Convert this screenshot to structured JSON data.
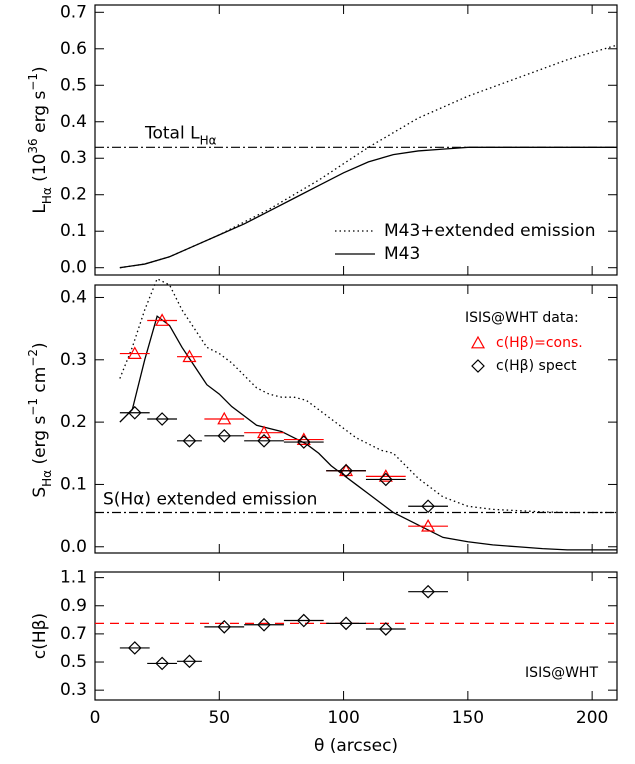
{
  "chart_data": [
    {
      "type": "line",
      "ylabel": [
        "L",
        {
          "text": "Hα",
          "shift": "sub"
        },
        " (10",
        {
          "text": "36",
          "shift": "super"
        },
        " erg s",
        {
          "text": "−1",
          "shift": "super"
        },
        ")"
      ],
      "xlim": [
        0,
        210
      ],
      "xticks": [
        0,
        50,
        100,
        150,
        200
      ],
      "ylim": [
        -0.02,
        0.72
      ],
      "yticks": [
        {
          "value": 0,
          "label": "0.0"
        },
        0.1,
        0.2,
        0.3,
        0.4,
        0.5,
        0.6,
        0.7
      ],
      "legend": "lower right",
      "hlines": [
        {
          "value": 0.33,
          "style": "dashdot",
          "color": "#000000",
          "label": [
            "Total L",
            {
              "text": "Hα",
              "shift": "sub"
            }
          ]
        }
      ],
      "series": [
        {
          "name": "M43+extended emission",
          "style": "dotted",
          "color": "#000000",
          "x": [
            10,
            20,
            30,
            40,
            50,
            60,
            70,
            80,
            90,
            100,
            110,
            120,
            130,
            140,
            150,
            160,
            170,
            180,
            190,
            200,
            210
          ],
          "values": [
            0,
            0.01,
            0.03,
            0.06,
            0.09,
            0.125,
            0.16,
            0.2,
            0.24,
            0.285,
            0.33,
            0.37,
            0.41,
            0.44,
            0.47,
            0.495,
            0.52,
            0.545,
            0.57,
            0.59,
            0.61
          ]
        },
        {
          "name": "M43",
          "style": "solid",
          "color": "#000000",
          "x": [
            10,
            20,
            30,
            40,
            50,
            60,
            70,
            80,
            90,
            100,
            110,
            120,
            130,
            140,
            150,
            160,
            170,
            180,
            190,
            200,
            210
          ],
          "values": [
            0,
            0.01,
            0.03,
            0.06,
            0.09,
            0.12,
            0.155,
            0.19,
            0.225,
            0.26,
            0.29,
            0.31,
            0.32,
            0.325,
            0.33,
            0.33,
            0.33,
            0.33,
            0.33,
            0.33,
            0.33
          ]
        }
      ]
    },
    {
      "type": "line",
      "ylabel": [
        "S",
        {
          "text": "Hα",
          "shift": "sub"
        },
        " (erg s",
        {
          "text": "−1",
          "shift": "super"
        },
        " cm",
        {
          "text": "−2",
          "shift": "super"
        },
        ")"
      ],
      "xlim": [
        0,
        210
      ],
      "xticks": [
        0,
        50,
        100,
        150,
        200
      ],
      "ylim": [
        -0.01,
        0.42
      ],
      "yticks": [
        {
          "value": 0,
          "label": "0.0"
        },
        0.1,
        0.2,
        0.3,
        0.4
      ],
      "legend": "upper right",
      "legend_title": "ISIS@WHT data:",
      "hlines": [
        {
          "value": 0.055,
          "style": "dashdot",
          "color": "#000000",
          "label": [
            "S(Hα) extended emission"
          ]
        }
      ],
      "series": [
        {
          "style": "dotted",
          "color": "#000000",
          "x": [
            10,
            15,
            20,
            25,
            30,
            35,
            40,
            45,
            50,
            55,
            60,
            65,
            70,
            75,
            80,
            85,
            90,
            95,
            100,
            105,
            110,
            115,
            120,
            125,
            130,
            135,
            140,
            150,
            160,
            170,
            180,
            190,
            200,
            210
          ],
          "values": [
            0.27,
            0.32,
            0.38,
            0.43,
            0.42,
            0.38,
            0.35,
            0.32,
            0.31,
            0.295,
            0.275,
            0.255,
            0.245,
            0.24,
            0.24,
            0.235,
            0.22,
            0.205,
            0.19,
            0.175,
            0.165,
            0.155,
            0.15,
            0.13,
            0.11,
            0.095,
            0.08,
            0.065,
            0.06,
            0.058,
            0.056,
            0.055,
            0.055,
            0.055
          ]
        },
        {
          "style": "solid",
          "color": "#000000",
          "x": [
            10,
            15,
            20,
            25,
            30,
            35,
            40,
            45,
            50,
            55,
            60,
            65,
            70,
            75,
            80,
            85,
            90,
            95,
            100,
            105,
            110,
            115,
            120,
            125,
            130,
            135,
            140,
            150,
            160,
            170,
            180,
            190,
            200,
            210
          ],
          "values": [
            0.2,
            0.22,
            0.3,
            0.37,
            0.355,
            0.32,
            0.29,
            0.26,
            0.245,
            0.225,
            0.21,
            0.195,
            0.19,
            0.185,
            0.175,
            0.165,
            0.15,
            0.13,
            0.115,
            0.1,
            0.085,
            0.07,
            0.055,
            0.045,
            0.035,
            0.025,
            0.015,
            0.008,
            0.003,
            0,
            -0.003,
            -0.005,
            -0.005,
            -0.005
          ]
        },
        {
          "name": "c(Hβ)=cons.",
          "marker": "triangle",
          "color": "#ff0000",
          "x": [
            16,
            27,
            38,
            52,
            68,
            84,
            101,
            117,
            134
          ],
          "xerr": [
            6,
            6,
            5,
            8,
            8,
            8,
            8,
            8,
            8
          ],
          "values": [
            0.31,
            0.363,
            0.305,
            0.205,
            0.183,
            0.172,
            0.122,
            0.113,
            0.033
          ]
        },
        {
          "name": "c(Hβ) spect",
          "marker": "diamond",
          "color": "#000000",
          "x": [
            16,
            27,
            38,
            52,
            68,
            84,
            101,
            117,
            134
          ],
          "xerr": [
            6,
            6,
            5,
            8,
            8,
            8,
            8,
            8,
            8
          ],
          "values": [
            0.215,
            0.205,
            0.17,
            0.178,
            0.17,
            0.168,
            0.122,
            0.108,
            0.065
          ]
        }
      ]
    },
    {
      "type": "scatter",
      "ylabel": [
        "c(Hβ)"
      ],
      "xlabel": "θ (arcsec)",
      "xlim": [
        0,
        210
      ],
      "xticks": [
        0,
        50,
        100,
        150,
        200
      ],
      "ylim": [
        0.23,
        1.14
      ],
      "yticks": [
        0.3,
        0.5,
        0.7,
        0.9,
        1.1
      ],
      "annotation": "ISIS@WHT",
      "hlines": [
        {
          "value": 0.775,
          "style": "dashed",
          "color": "#ff0000"
        }
      ],
      "series": [
        {
          "marker": "diamond",
          "color": "#000000",
          "x": [
            16,
            27,
            38,
            52,
            68,
            84,
            101,
            117,
            134
          ],
          "xerr": [
            6,
            6,
            5,
            8,
            8,
            8,
            8,
            8,
            8
          ],
          "values": [
            0.6,
            0.49,
            0.505,
            0.75,
            0.765,
            0.795,
            0.775,
            0.735,
            1.0
          ]
        }
      ]
    }
  ]
}
